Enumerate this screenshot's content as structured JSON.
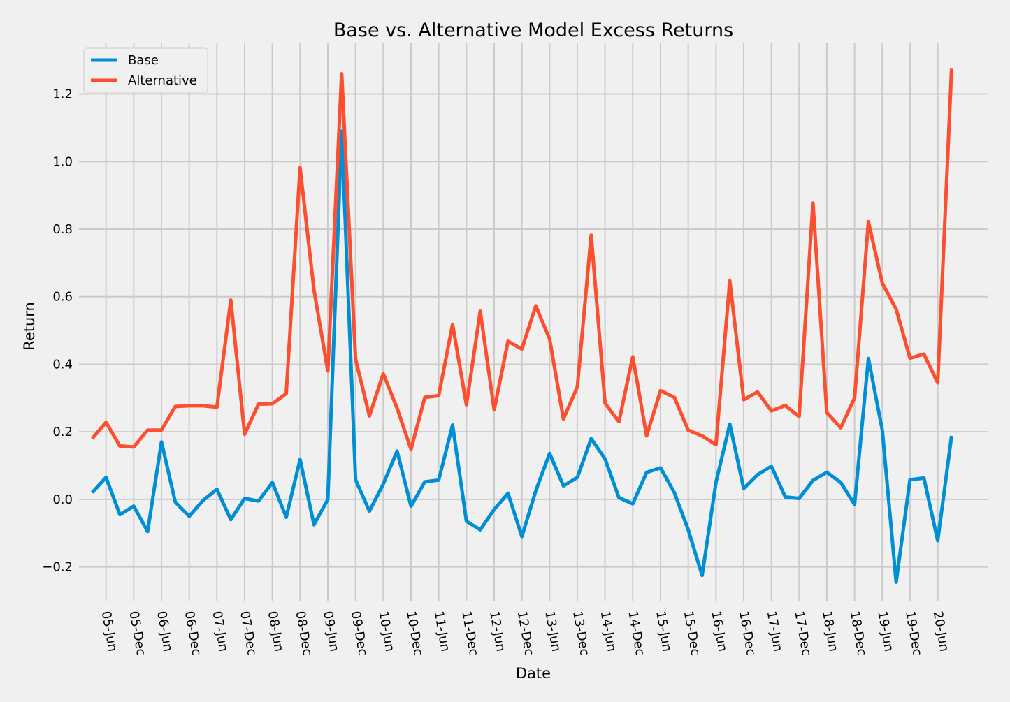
{
  "chart_data": {
    "type": "line",
    "title": "Base vs. Alternative Model Excess Returns",
    "xlabel": "Date",
    "ylabel": "Return",
    "ylim": [
      -0.3,
      1.35
    ],
    "yticks": [
      -0.2,
      0.0,
      0.2,
      0.4,
      0.6,
      0.8,
      1.0,
      1.2
    ],
    "ytick_labels": [
      "−0.2",
      "0.0",
      "0.2",
      "0.4",
      "0.6",
      "0.8",
      "1.0",
      "1.2"
    ],
    "xtick_labels": [
      "05-Jun",
      "05-Dec",
      "06-Jun",
      "06-Dec",
      "07-Jun",
      "07-Dec",
      "08-Jun",
      "08-Dec",
      "09-Jun",
      "09-Dec",
      "10-Jun",
      "10-Dec",
      "11-Jun",
      "11-Dec",
      "12-Jun",
      "12-Dec",
      "13-Jun",
      "13-Dec",
      "14-Jun",
      "14-Dec",
      "15-Jun",
      "15-Dec",
      "16-Jun",
      "16-Dec",
      "17-Jun",
      "17-Dec",
      "18-Jun",
      "18-Dec",
      "19-Jun",
      "19-Dec",
      "20-Jun"
    ],
    "xlim": [
      -0.95,
      64.6
    ],
    "x": [
      0,
      1,
      2,
      3,
      4,
      5,
      6,
      7,
      8,
      9,
      10,
      11,
      12,
      13,
      14,
      15,
      16,
      17,
      18,
      19,
      20,
      21,
      22,
      23,
      24,
      25,
      26,
      27,
      28,
      29,
      30,
      31,
      32,
      33,
      34,
      35,
      36,
      37,
      38,
      39,
      40,
      41,
      42,
      43,
      44,
      45,
      46,
      47,
      48,
      49,
      50,
      51,
      52,
      53,
      54,
      55,
      56,
      57,
      58,
      59,
      60,
      61,
      62
    ],
    "legend_position": "top-left",
    "grid": true,
    "series": [
      {
        "name": "Base",
        "color": "#008fd5",
        "values": [
          0.02,
          0.065,
          -0.045,
          -0.02,
          -0.095,
          0.17,
          -0.008,
          -0.05,
          -0.003,
          0.03,
          -0.06,
          0.003,
          -0.005,
          0.05,
          -0.053,
          0.118,
          -0.075,
          0.0,
          1.09,
          0.058,
          -0.035,
          0.045,
          0.143,
          -0.02,
          0.052,
          0.057,
          0.22,
          -0.065,
          -0.09,
          -0.03,
          0.018,
          -0.11,
          0.025,
          0.136,
          0.04,
          0.065,
          0.18,
          0.12,
          0.005,
          -0.013,
          0.08,
          0.093,
          0.02,
          -0.09,
          -0.225,
          0.05,
          0.223,
          0.032,
          0.073,
          0.098,
          0.007,
          0.003,
          0.056,
          0.08,
          0.05,
          -0.015,
          0.417,
          0.205,
          -0.245,
          0.058,
          0.063,
          -0.122,
          0.188
        ]
      },
      {
        "name": "Alternative",
        "color": "#fc4f30",
        "values": [
          0.18,
          0.228,
          0.158,
          0.155,
          0.205,
          0.205,
          0.275,
          0.277,
          0.277,
          0.273,
          0.59,
          0.193,
          0.282,
          0.283,
          0.313,
          0.982,
          0.62,
          0.38,
          1.26,
          0.415,
          0.247,
          0.372,
          0.27,
          0.148,
          0.302,
          0.307,
          0.518,
          0.28,
          0.557,
          0.265,
          0.468,
          0.445,
          0.573,
          0.475,
          0.238,
          0.333,
          0.782,
          0.285,
          0.23,
          0.422,
          0.188,
          0.322,
          0.302,
          0.205,
          0.188,
          0.162,
          0.647,
          0.295,
          0.318,
          0.262,
          0.278,
          0.245,
          0.877,
          0.257,
          0.212,
          0.3,
          0.822,
          0.64,
          0.563,
          0.418,
          0.43,
          0.345,
          1.275
        ]
      }
    ]
  }
}
